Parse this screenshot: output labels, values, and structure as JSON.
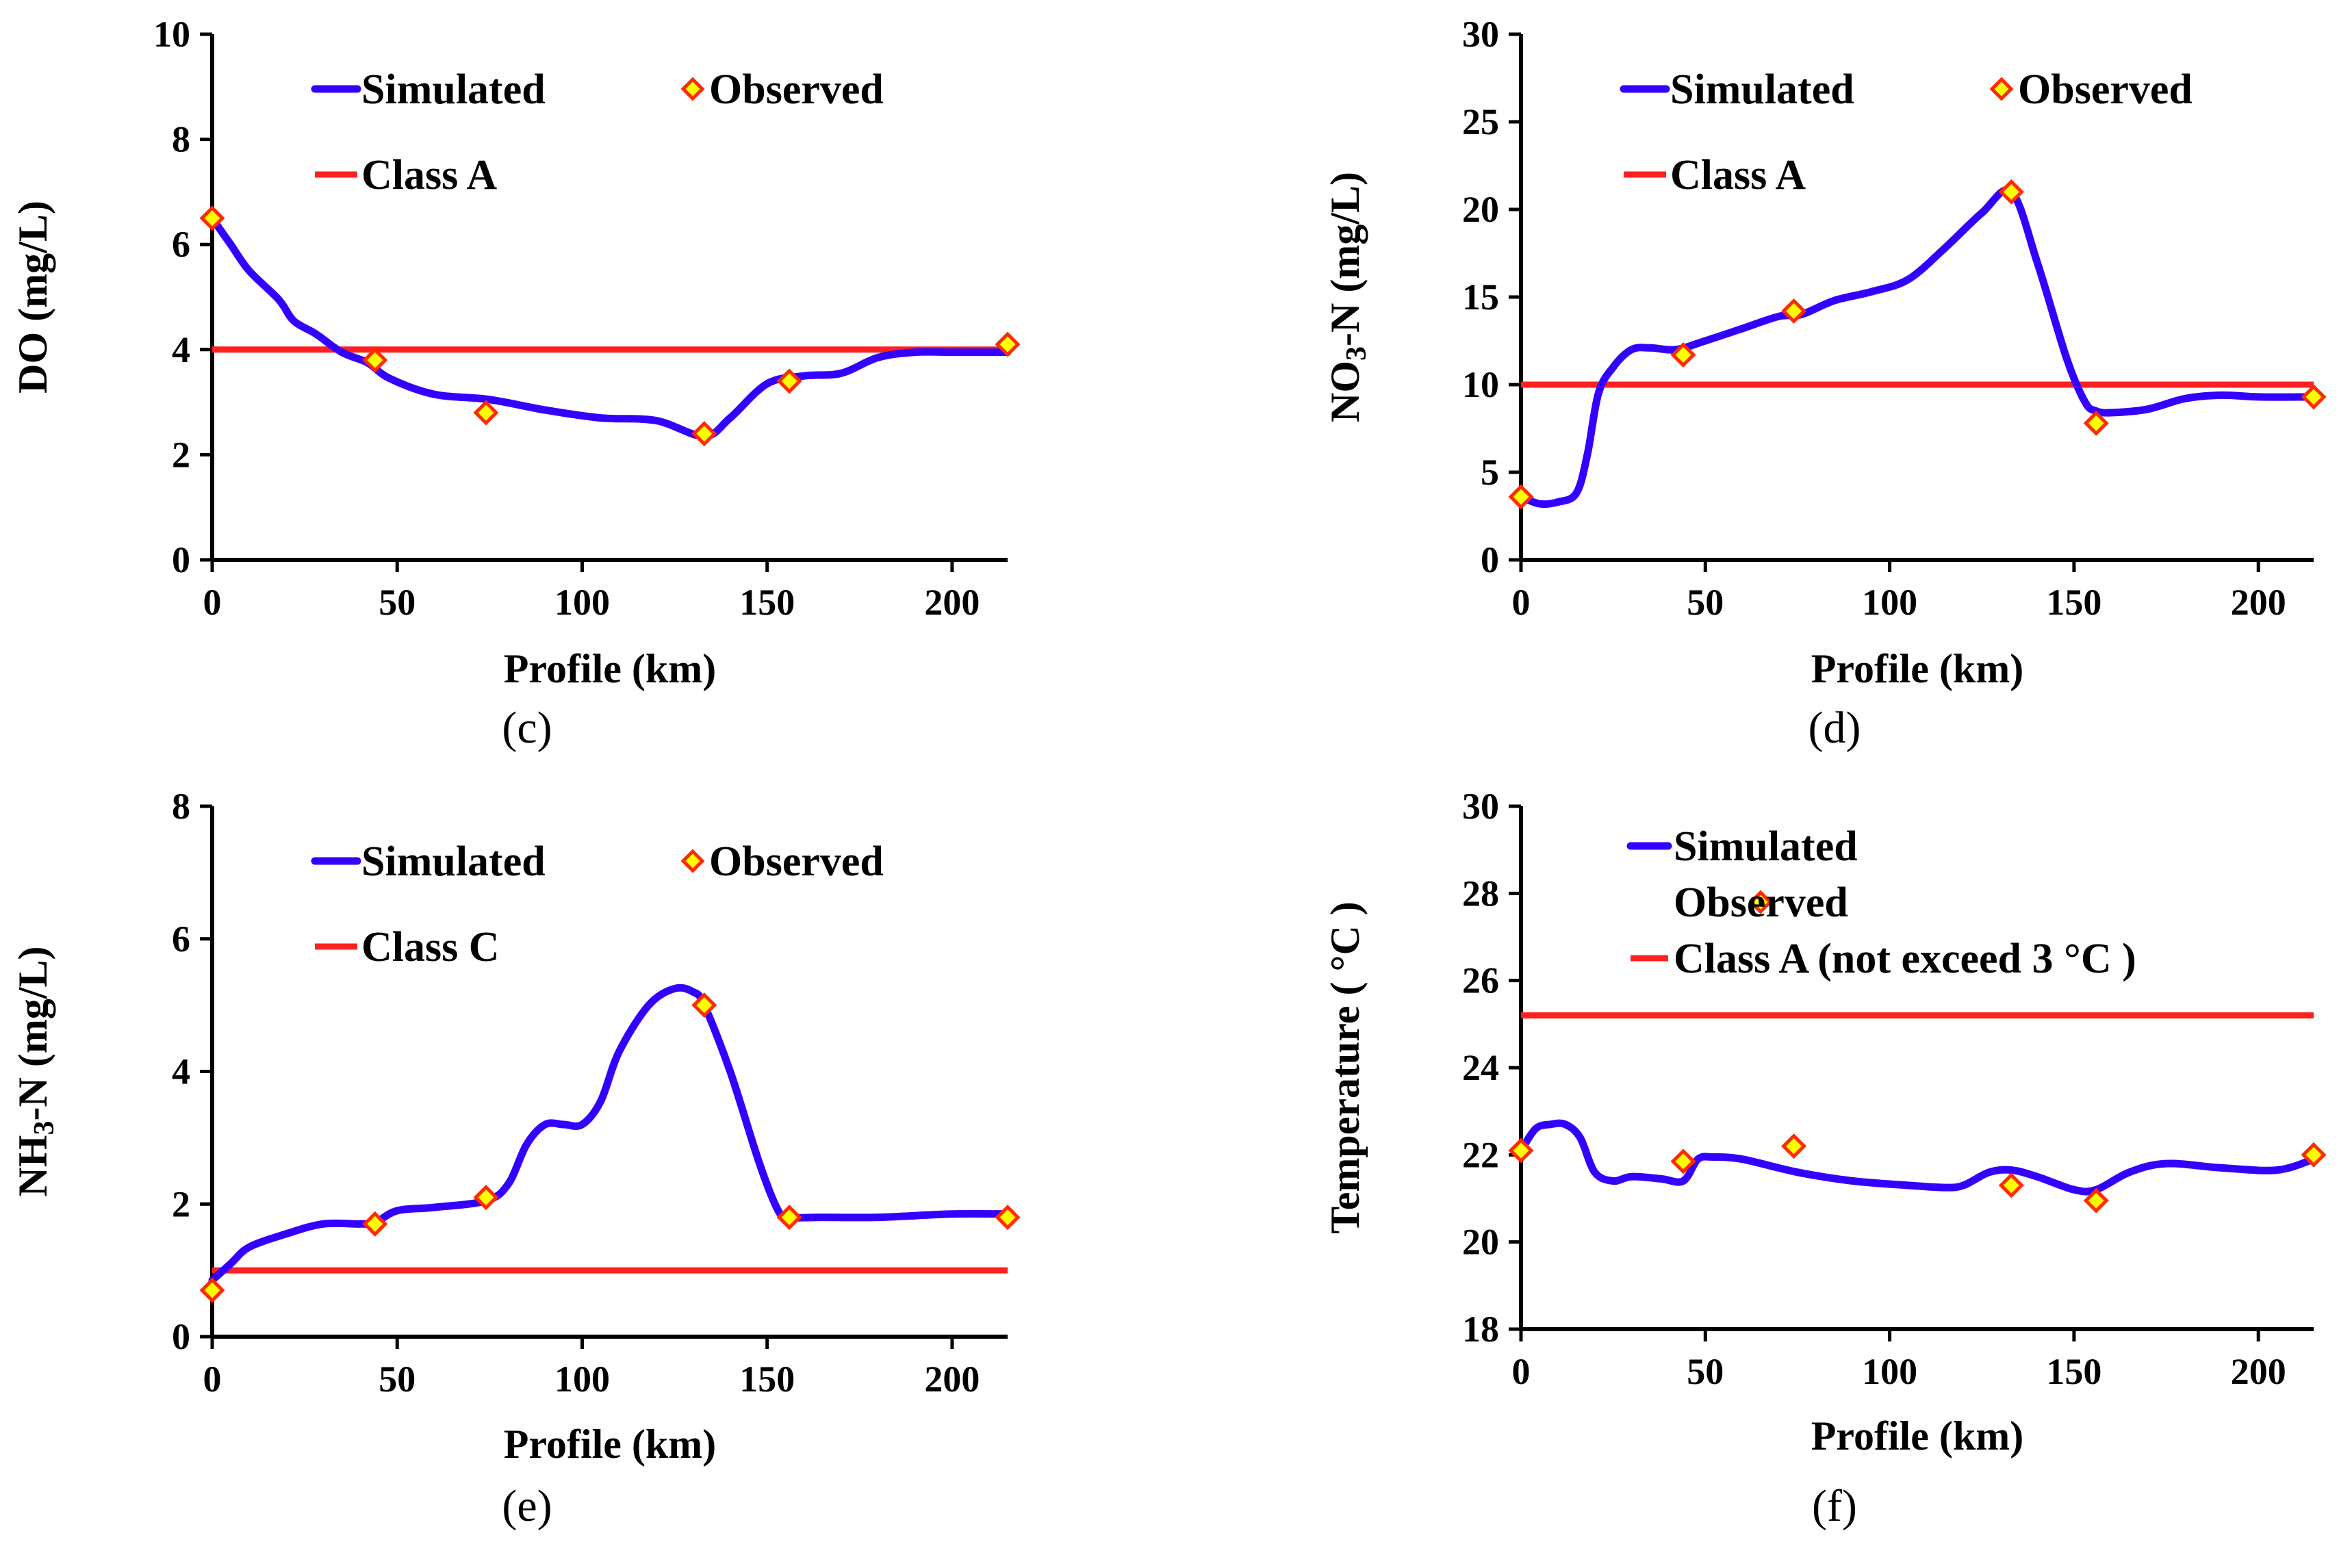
{
  "colors": {
    "simulated": "#3300ff",
    "observed_fill": "#ffff00",
    "observed_stroke": "#ff2a00",
    "class_line": "#ff2020",
    "axis": "#000000"
  },
  "chart_data": [
    {
      "type": "line",
      "panel_label": "(c)",
      "xlabel": "Profile (km)",
      "ylabel": "DO (mg/L)",
      "xlim": [
        0,
        215
      ],
      "ylim": [
        0,
        10
      ],
      "xticks": [
        "0",
        "50",
        "100",
        "150",
        "200"
      ],
      "yticks": [
        "0",
        "2",
        "4",
        "6",
        "8",
        "10"
      ],
      "legend": {
        "simulated": "Simulated",
        "observed": "Observed",
        "class": "Class A"
      },
      "series": [
        {
          "name": "Simulated",
          "x": [
            0,
            5,
            10,
            18,
            22,
            28,
            35,
            42,
            48,
            60,
            75,
            90,
            105,
            120,
            133,
            140,
            150,
            160,
            170,
            180,
            190,
            200,
            215
          ],
          "y": [
            6.5,
            6.0,
            5.5,
            4.95,
            4.55,
            4.3,
            3.95,
            3.75,
            3.45,
            3.15,
            3.05,
            2.85,
            2.7,
            2.65,
            2.35,
            2.7,
            3.35,
            3.5,
            3.55,
            3.85,
            3.95,
            3.95,
            3.95
          ]
        },
        {
          "name": "Observed",
          "x": [
            0,
            44,
            74,
            133,
            156,
            215
          ],
          "y": [
            6.5,
            3.8,
            2.8,
            2.4,
            3.4,
            4.1
          ]
        },
        {
          "name": "Class A",
          "y": 4.0
        }
      ]
    },
    {
      "type": "line",
      "panel_label": "(d)",
      "xlabel": "Profile (km)",
      "ylabel_prefix": "NO",
      "ylabel_sub": "3",
      "ylabel_suffix": "-N (mg/L)",
      "xlim": [
        0,
        215
      ],
      "ylim": [
        0,
        30
      ],
      "xticks": [
        "0",
        "50",
        "100",
        "150",
        "200"
      ],
      "yticks": [
        "0",
        "5",
        "10",
        "15",
        "20",
        "25",
        "30"
      ],
      "legend": {
        "simulated": "Simulated",
        "observed": "Observed",
        "class": "Class A"
      },
      "series": [
        {
          "name": "Simulated",
          "x": [
            0,
            5,
            10,
            15,
            18,
            21,
            25,
            30,
            35,
            42,
            50,
            60,
            70,
            76,
            85,
            95,
            105,
            115,
            125,
            133,
            140,
            148,
            153,
            156,
            160,
            170,
            180,
            190,
            200,
            215
          ],
          "y": [
            3.6,
            3.2,
            3.3,
            3.8,
            6.0,
            9.5,
            11.0,
            12.0,
            12.1,
            12.0,
            12.5,
            13.2,
            13.9,
            14.0,
            14.8,
            15.3,
            16.0,
            17.8,
            19.8,
            21.0,
            17.0,
            11.5,
            9.0,
            8.5,
            8.4,
            8.6,
            9.2,
            9.4,
            9.3,
            9.3
          ]
        },
        {
          "name": "Observed",
          "x": [
            0,
            44,
            74,
            133,
            156,
            215
          ],
          "y": [
            3.6,
            11.7,
            14.2,
            21.0,
            7.8,
            9.3
          ]
        },
        {
          "name": "Class A",
          "y": 10.0
        }
      ]
    },
    {
      "type": "line",
      "panel_label": "(e)",
      "xlabel": "Profile (km)",
      "ylabel_prefix": "NH",
      "ylabel_sub": "3",
      "ylabel_suffix": "-N (mg/L)",
      "xlim": [
        0,
        215
      ],
      "ylim": [
        0,
        8
      ],
      "xticks": [
        "0",
        "50",
        "100",
        "150",
        "200"
      ],
      "yticks": [
        "0",
        "2",
        "4",
        "6",
        "8"
      ],
      "legend": {
        "simulated": "Simulated",
        "observed": "Observed",
        "class": "Class C"
      },
      "series": [
        {
          "name": "Simulated",
          "x": [
            0,
            5,
            10,
            20,
            30,
            40,
            44,
            50,
            60,
            74,
            80,
            85,
            90,
            95,
            100,
            105,
            110,
            118,
            125,
            130,
            133,
            140,
            148,
            153,
            156,
            165,
            180,
            200,
            215
          ],
          "y": [
            0.85,
            1.1,
            1.35,
            1.55,
            1.7,
            1.7,
            1.72,
            1.9,
            1.95,
            2.05,
            2.3,
            2.9,
            3.2,
            3.2,
            3.2,
            3.55,
            4.3,
            5.0,
            5.25,
            5.2,
            5.0,
            4.0,
            2.6,
            1.9,
            1.8,
            1.8,
            1.8,
            1.85,
            1.85
          ]
        },
        {
          "name": "Observed",
          "x": [
            0,
            44,
            74,
            133,
            156,
            215
          ],
          "y": [
            0.7,
            1.7,
            2.1,
            5.0,
            1.8,
            1.8
          ]
        },
        {
          "name": "Class C",
          "y": 1.0
        }
      ]
    },
    {
      "type": "line",
      "panel_label": "(f)",
      "xlabel": "Profile (km)",
      "ylabel": "Temperature ( °C )",
      "xlim": [
        0,
        215
      ],
      "ylim": [
        18,
        30
      ],
      "xticks": [
        "0",
        "50",
        "100",
        "150",
        "200"
      ],
      "yticks": [
        "18",
        "20",
        "22",
        "24",
        "26",
        "28",
        "30"
      ],
      "legend": {
        "simulated": "Simulated",
        "observed": "Observed",
        "class": "Class A (not exceed 3 °C )"
      },
      "series": [
        {
          "name": "Simulated",
          "x": [
            0,
            4,
            8,
            12,
            16,
            20,
            25,
            30,
            38,
            44,
            48,
            52,
            60,
            75,
            90,
            105,
            115,
            120,
            127,
            133,
            140,
            150,
            156,
            165,
            175,
            190,
            205,
            215
          ],
          "y": [
            22.1,
            22.6,
            22.7,
            22.7,
            22.4,
            21.6,
            21.4,
            21.5,
            21.45,
            21.4,
            21.9,
            21.95,
            21.9,
            21.6,
            21.4,
            21.3,
            21.25,
            21.3,
            21.6,
            21.65,
            21.5,
            21.2,
            21.2,
            21.6,
            21.8,
            21.7,
            21.65,
            21.9
          ]
        },
        {
          "name": "Observed",
          "x": [
            0,
            44,
            74,
            133,
            156,
            215
          ],
          "y": [
            22.1,
            21.85,
            22.2,
            21.3,
            20.95,
            22.0
          ]
        },
        {
          "name": "Class A (not exceed 3 °C )",
          "y": 25.2
        }
      ]
    }
  ]
}
